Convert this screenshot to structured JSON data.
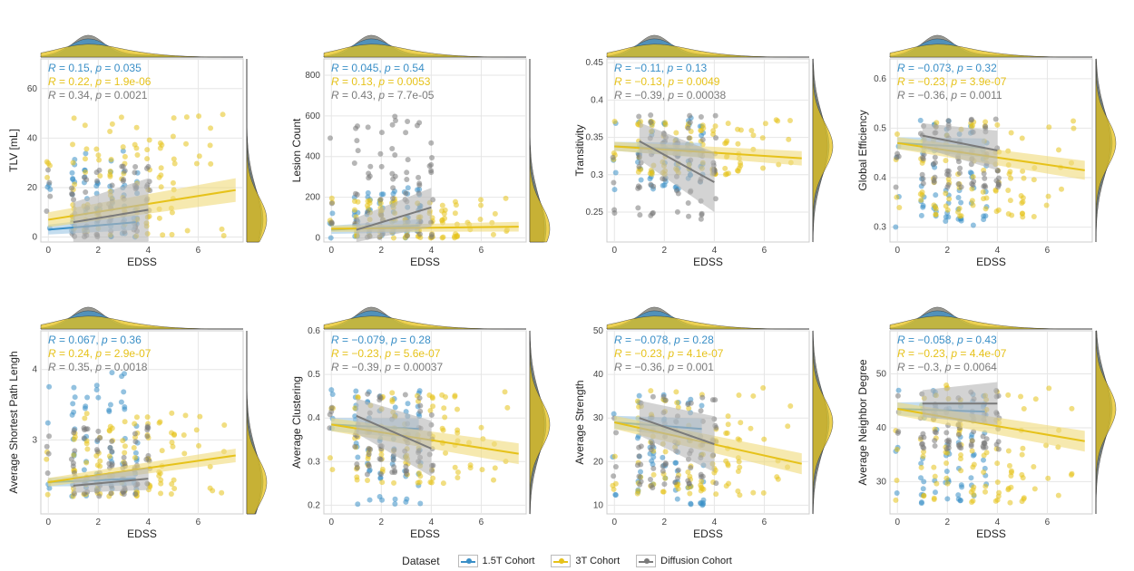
{
  "colors": {
    "1.5T Cohort": "#3a8fc7",
    "3T Cohort": "#e6c21a",
    "Diffusion Cohort": "#7a7a7a"
  },
  "legend": {
    "title": "Dataset",
    "items": [
      {
        "label": "1.5T Cohort",
        "color": "#3a8fc7",
        "fill": "#a8cfe8"
      },
      {
        "label": "3T Cohort",
        "color": "#e6c21a",
        "fill": "#f2df8a"
      },
      {
        "label": "Diffusion Cohort",
        "color": "#7a7a7a",
        "fill": "#bdbdbd"
      }
    ]
  },
  "chart_data": [
    {
      "type": "scatter",
      "xlabel": "EDSS",
      "ylabel": "TLV [mL]",
      "xlim": [
        -0.3,
        7.8
      ],
      "ylim": [
        -2,
        72
      ],
      "xticks": [
        0,
        2,
        4,
        6
      ],
      "yticks": [
        0,
        20,
        40,
        60
      ],
      "annotations": [
        {
          "r": "0.15",
          "p": "0.035",
          "series": "1.5T Cohort"
        },
        {
          "r": "0.22",
          "p": "1.9e-06",
          "series": "3T Cohort"
        },
        {
          "r": "0.34",
          "p": "0.0021",
          "series": "Diffusion Cohort"
        }
      ],
      "fits": [
        {
          "series": "1.5T Cohort",
          "x": [
            0,
            3.5
          ],
          "y": [
            3,
            6
          ],
          "ci": 2
        },
        {
          "series": "3T Cohort",
          "x": [
            0,
            7.5
          ],
          "y": [
            7,
            19
          ],
          "ci": 3
        },
        {
          "series": "Diffusion Cohort",
          "x": [
            1,
            4
          ],
          "y": [
            6,
            11
          ],
          "ci": 8
        }
      ],
      "scatter_range": {
        "1.5T Cohort": [
          0,
          35
        ],
        "3T Cohort": [
          0,
          50
        ],
        "Diffusion Cohort": [
          0,
          30
        ]
      }
    },
    {
      "type": "scatter",
      "xlabel": "EDSS",
      "ylabel": "Lesion Count",
      "xlim": [
        -0.3,
        7.8
      ],
      "ylim": [
        -20,
        880
      ],
      "xticks": [
        0,
        2,
        4,
        6
      ],
      "yticks": [
        0,
        200,
        400,
        600,
        800
      ],
      "annotations": [
        {
          "r": "0.045",
          "p": "0.54",
          "series": "1.5T Cohort"
        },
        {
          "r": "0.13",
          "p": "0.0053",
          "series": "3T Cohort"
        },
        {
          "r": "0.43",
          "p": "7.7e-05",
          "series": "Diffusion Cohort"
        }
      ],
      "fits": [
        {
          "series": "1.5T Cohort",
          "x": [
            0,
            3.5
          ],
          "y": [
            40,
            60
          ],
          "ci": 20
        },
        {
          "series": "3T Cohort",
          "x": [
            0,
            7.5
          ],
          "y": [
            45,
            55
          ],
          "ci": 15
        },
        {
          "series": "Diffusion Cohort",
          "x": [
            1,
            4
          ],
          "y": [
            40,
            150
          ],
          "ci": 60
        }
      ],
      "scatter_range": {
        "1.5T Cohort": [
          0,
          250
        ],
        "3T Cohort": [
          0,
          200
        ],
        "Diffusion Cohort": [
          0,
          600
        ]
      }
    },
    {
      "type": "scatter",
      "xlabel": "EDSS",
      "ylabel": "Transitivity",
      "xlim": [
        -0.3,
        7.8
      ],
      "ylim": [
        0.21,
        0.455
      ],
      "xticks": [
        0,
        2,
        4,
        6
      ],
      "yticks": [
        0.25,
        0.3,
        0.35,
        0.4,
        0.45
      ],
      "annotations": [
        {
          "r": "−0.11",
          "p": "0.13",
          "series": "1.5T Cohort"
        },
        {
          "r": "−0.13",
          "p": "0.0049",
          "series": "3T Cohort"
        },
        {
          "r": "−0.39",
          "p": "0.00038",
          "series": "Diffusion Cohort"
        }
      ],
      "fits": [
        {
          "series": "1.5T Cohort",
          "x": [
            0,
            3.5
          ],
          "y": [
            0.338,
            0.333
          ],
          "ci": 0.006
        },
        {
          "series": "3T Cohort",
          "x": [
            0,
            7.5
          ],
          "y": [
            0.338,
            0.322
          ],
          "ci": 0.006
        },
        {
          "series": "Diffusion Cohort",
          "x": [
            1,
            4
          ],
          "y": [
            0.345,
            0.29
          ],
          "ci": 0.025
        }
      ],
      "scatter_range": {
        "1.5T Cohort": [
          0.28,
          0.38
        ],
        "3T Cohort": [
          0.3,
          0.375
        ],
        "Diffusion Cohort": [
          0.24,
          0.38
        ]
      }
    },
    {
      "type": "scatter",
      "xlabel": "EDSS",
      "ylabel": "Global Efficiency",
      "xlim": [
        -0.3,
        7.8
      ],
      "ylim": [
        0.27,
        0.64
      ],
      "xticks": [
        0,
        2,
        4,
        6
      ],
      "yticks": [
        0.3,
        0.4,
        0.5,
        0.6
      ],
      "annotations": [
        {
          "r": "−0.073",
          "p": "0.32",
          "series": "1.5T Cohort"
        },
        {
          "r": "−0.23",
          "p": "3.9e-07",
          "series": "3T Cohort"
        },
        {
          "r": "−0.36",
          "p": "0.0011",
          "series": "Diffusion Cohort"
        }
      ],
      "fits": [
        {
          "series": "1.5T Cohort",
          "x": [
            0,
            3.5
          ],
          "y": [
            0.47,
            0.46
          ],
          "ci": 0.012
        },
        {
          "series": "3T Cohort",
          "x": [
            0,
            7.5
          ],
          "y": [
            0.47,
            0.415
          ],
          "ci": 0.012
        },
        {
          "series": "Diffusion Cohort",
          "x": [
            1,
            4
          ],
          "y": [
            0.485,
            0.455
          ],
          "ci": 0.025
        }
      ],
      "scatter_range": {
        "1.5T Cohort": [
          0.3,
          0.52
        ],
        "3T Cohort": [
          0.32,
          0.52
        ],
        "Diffusion Cohort": [
          0.38,
          0.52
        ]
      }
    },
    {
      "type": "scatter",
      "xlabel": "EDSS",
      "ylabel": "Average Shortest Path Lengh",
      "xlim": [
        -0.3,
        7.8
      ],
      "ylim": [
        1.95,
        4.55
      ],
      "xticks": [
        0,
        2,
        4,
        6
      ],
      "yticks": [
        3,
        4
      ],
      "annotations": [
        {
          "r": "0.067",
          "p": "0.36",
          "series": "1.5T Cohort"
        },
        {
          "r": "0.24",
          "p": "2.9e-07",
          "series": "3T Cohort"
        },
        {
          "r": "0.35",
          "p": "0.0018",
          "series": "Diffusion Cohort"
        }
      ],
      "fits": [
        {
          "series": "1.5T Cohort",
          "x": [
            0,
            3.5
          ],
          "y": [
            2.4,
            2.45
          ],
          "ci": 0.06
        },
        {
          "series": "3T Cohort",
          "x": [
            0,
            7.5
          ],
          "y": [
            2.4,
            2.78
          ],
          "ci": 0.06
        },
        {
          "series": "Diffusion Cohort",
          "x": [
            1,
            4
          ],
          "y": [
            2.35,
            2.45
          ],
          "ci": 0.1
        }
      ],
      "scatter_range": {
        "1.5T Cohort": [
          2.2,
          4.0
        ],
        "3T Cohort": [
          2.2,
          3.4
        ],
        "Diffusion Cohort": [
          2.2,
          3.2
        ]
      }
    },
    {
      "type": "scatter",
      "xlabel": "EDSS",
      "ylabel": "Average Clustering",
      "xlim": [
        -0.3,
        7.8
      ],
      "ylim": [
        0.18,
        0.6
      ],
      "xticks": [
        0,
        2,
        4,
        6
      ],
      "yticks": [
        0.2,
        0.3,
        0.4,
        0.5,
        0.6
      ],
      "annotations": [
        {
          "r": "−0.079",
          "p": "0.28",
          "series": "1.5T Cohort"
        },
        {
          "r": "−0.23",
          "p": "5.6e-07",
          "series": "3T Cohort"
        },
        {
          "r": "−0.39",
          "p": "0.00037",
          "series": "Diffusion Cohort"
        }
      ],
      "fits": [
        {
          "series": "1.5T Cohort",
          "x": [
            0,
            3.5
          ],
          "y": [
            0.385,
            0.375
          ],
          "ci": 0.015
        },
        {
          "series": "3T Cohort",
          "x": [
            0,
            7.5
          ],
          "y": [
            0.385,
            0.318
          ],
          "ci": 0.015
        },
        {
          "series": "Diffusion Cohort",
          "x": [
            1,
            4
          ],
          "y": [
            0.405,
            0.33
          ],
          "ci": 0.04
        }
      ],
      "scatter_range": {
        "1.5T Cohort": [
          0.2,
          0.47
        ],
        "3T Cohort": [
          0.25,
          0.46
        ],
        "Diffusion Cohort": [
          0.27,
          0.46
        ]
      }
    },
    {
      "type": "scatter",
      "xlabel": "EDSS",
      "ylabel": "Average Strength",
      "xlim": [
        -0.3,
        7.8
      ],
      "ylim": [
        8,
        50
      ],
      "xticks": [
        0,
        2,
        4,
        6
      ],
      "yticks": [
        10,
        20,
        30,
        40,
        50
      ],
      "annotations": [
        {
          "r": "−0.078",
          "p": "0.28",
          "series": "1.5T Cohort"
        },
        {
          "r": "−0.23",
          "p": "4.1e-07",
          "series": "3T Cohort"
        },
        {
          "r": "−0.36",
          "p": "0.001",
          "series": "Diffusion Cohort"
        }
      ],
      "fits": [
        {
          "series": "1.5T Cohort",
          "x": [
            0,
            3.5
          ],
          "y": [
            29,
            27.5
          ],
          "ci": 1.5
        },
        {
          "series": "3T Cohort",
          "x": [
            0,
            7.5
          ],
          "y": [
            29,
            19.5
          ],
          "ci": 1.5
        },
        {
          "series": "Diffusion Cohort",
          "x": [
            1,
            4
          ],
          "y": [
            30,
            24
          ],
          "ci": 4
        }
      ],
      "scatter_range": {
        "1.5T Cohort": [
          10,
          36
        ],
        "3T Cohort": [
          12,
          37
        ],
        "Diffusion Cohort": [
          14,
          36
        ]
      }
    },
    {
      "type": "scatter",
      "xlabel": "EDSS",
      "ylabel": "Average Neighbor Degree",
      "xlim": [
        -0.3,
        7.8
      ],
      "ylim": [
        24,
        58
      ],
      "xticks": [
        0,
        2,
        4,
        6
      ],
      "yticks": [
        30,
        40,
        50
      ],
      "annotations": [
        {
          "r": "−0.058",
          "p": "0.43",
          "series": "1.5T Cohort"
        },
        {
          "r": "−0.23",
          "p": "4.4e-07",
          "series": "3T Cohort"
        },
        {
          "r": "−0.3",
          "p": "0.0064",
          "series": "Diffusion Cohort"
        }
      ],
      "fits": [
        {
          "series": "1.5T Cohort",
          "x": [
            0,
            3.5
          ],
          "y": [
            43.5,
            43
          ],
          "ci": 1.2
        },
        {
          "series": "3T Cohort",
          "x": [
            0,
            7.5
          ],
          "y": [
            43.5,
            37.5
          ],
          "ci": 1.2
        },
        {
          "series": "Diffusion Cohort",
          "x": [
            1,
            4
          ],
          "y": [
            44.5,
            44.5
          ],
          "ci": 2.5
        }
      ],
      "scatter_range": {
        "1.5T Cohort": [
          26,
          47
        ],
        "3T Cohort": [
          26,
          48
        ],
        "Diffusion Cohort": [
          36,
          47
        ]
      }
    }
  ]
}
